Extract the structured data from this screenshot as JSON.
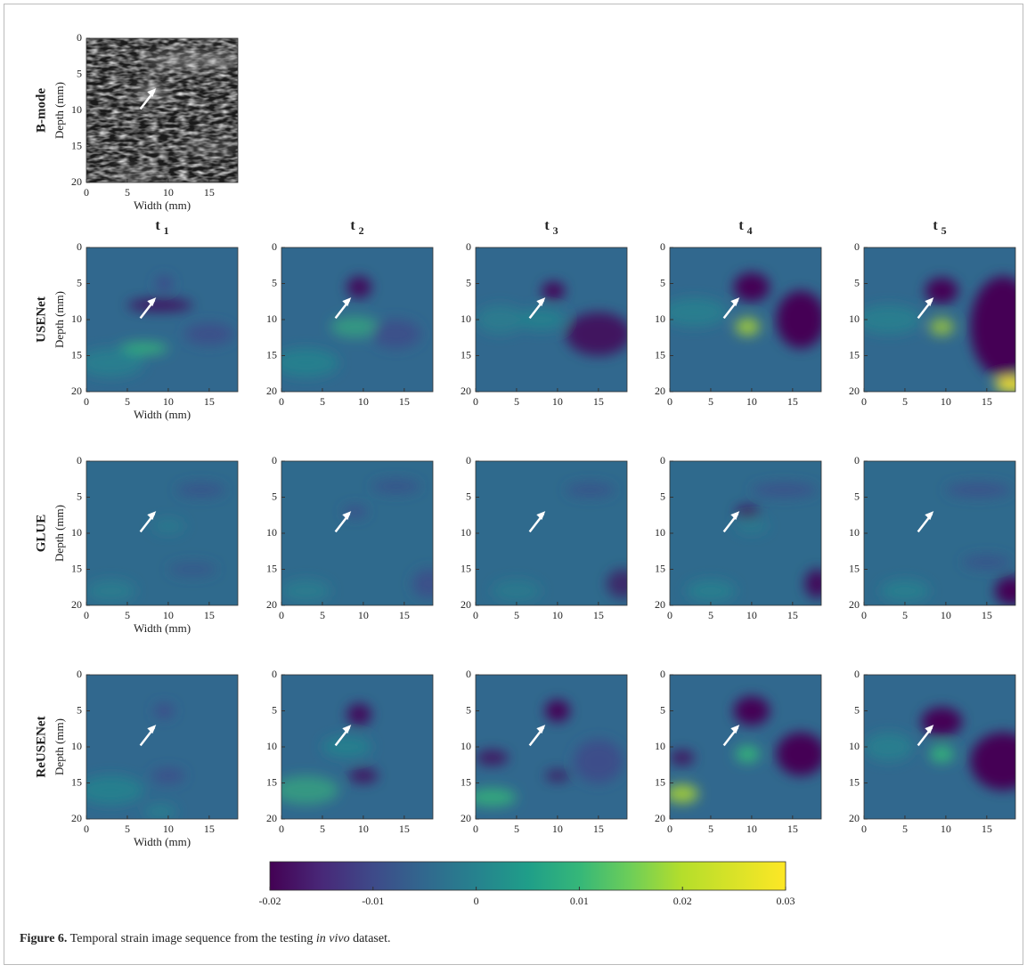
{
  "bmode": {
    "row_label": "B-mode"
  },
  "rows": [
    {
      "label": "USENet"
    },
    {
      "label": "GLUE"
    },
    {
      "label": "ReUSENet"
    }
  ],
  "columns": [
    {
      "symbol": "t",
      "index": "1"
    },
    {
      "symbol": "t",
      "index": "2"
    },
    {
      "symbol": "t",
      "index": "3"
    },
    {
      "symbol": "t",
      "index": "4"
    },
    {
      "symbol": "t",
      "index": "5"
    }
  ],
  "axes": {
    "xlabel": "Width (mm)",
    "ylabel": "Depth (mm)",
    "xlim": [
      0,
      18.5
    ],
    "ylim": [
      0,
      20
    ],
    "xticks": [
      0,
      5,
      10,
      15
    ],
    "yticks": [
      0,
      5,
      10,
      15,
      20
    ]
  },
  "colorbar": {
    "lim": [
      -0.02,
      0.03
    ],
    "ticks": [
      -0.02,
      -0.01,
      0,
      0.01,
      0.02,
      0.03
    ]
  },
  "caption": {
    "label": "Figure 6.",
    "text_before": "Temporal strain image sequence from the testing",
    "italic": "in vivo",
    "text_after": "dataset."
  }
}
